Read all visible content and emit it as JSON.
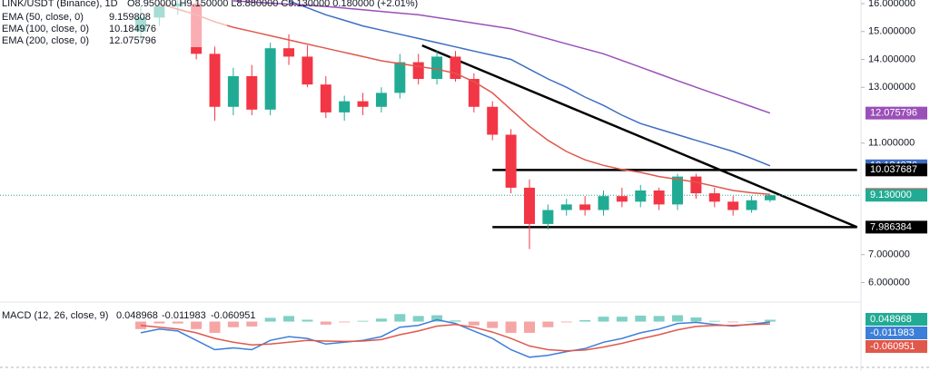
{
  "chart_data": {
    "type": "candlestick",
    "title": "LINK/USDT (Binance), 1D",
    "header_ohlc": "O8.950000 H9.150000 L8.880000 C9.130000 0.180000 (+2.01%)",
    "up_color": "#22ab94",
    "down_color": "#f23645",
    "open": [
      15.0,
      15.5,
      15.9,
      16.0,
      14.2,
      12.3,
      13.4,
      12.2,
      14.4,
      14.1,
      13.1,
      12.1,
      12.5,
      12.3,
      12.8,
      13.9,
      13.3,
      14.1,
      13.3,
      12.3,
      11.3,
      9.4,
      8.1,
      8.6,
      8.8,
      8.6,
      9.1,
      8.9,
      9.3,
      8.8,
      9.8,
      9.2,
      8.9,
      8.6,
      8.95
    ],
    "high": [
      15.9,
      16.1,
      16.3,
      16.2,
      14.5,
      13.7,
      13.8,
      14.6,
      14.9,
      14.5,
      13.4,
      12.7,
      12.8,
      13.0,
      14.2,
      14.2,
      14.3,
      14.3,
      13.5,
      12.5,
      11.5,
      9.7,
      8.8,
      9.0,
      9.1,
      9.3,
      9.4,
      9.5,
      9.4,
      9.9,
      9.9,
      9.4,
      9.1,
      9.1,
      9.15
    ],
    "low": [
      14.6,
      15.2,
      15.6,
      14.0,
      11.8,
      12.0,
      12.0,
      12.0,
      13.8,
      13.0,
      11.9,
      11.8,
      12.0,
      12.1,
      12.6,
      13.1,
      13.1,
      13.2,
      12.1,
      11.1,
      9.2,
      7.2,
      7.9,
      8.4,
      8.4,
      8.4,
      8.7,
      8.7,
      8.6,
      8.6,
      9.0,
      8.7,
      8.4,
      8.5,
      8.88
    ],
    "close": [
      15.5,
      15.9,
      16.0,
      14.2,
      12.3,
      13.4,
      12.2,
      14.4,
      14.1,
      13.1,
      12.1,
      12.5,
      12.3,
      12.8,
      13.9,
      13.3,
      14.1,
      13.3,
      12.3,
      11.3,
      9.4,
      8.1,
      8.6,
      8.8,
      8.6,
      9.1,
      8.9,
      9.3,
      8.8,
      9.8,
      9.2,
      8.9,
      8.6,
      8.95,
      9.13
    ],
    "last_price_label": "9.130000",
    "series": [
      {
        "name": "EMA (50, close, 0)",
        "color": "#e0584c",
        "values": [
          null,
          16.0,
          15.8,
          15.6,
          15.35,
          15.15,
          15.0,
          14.85,
          14.7,
          14.55,
          14.4,
          14.25,
          14.1,
          13.95,
          13.85,
          13.75,
          13.65,
          13.5,
          13.2,
          12.8,
          12.2,
          11.6,
          11.1,
          10.7,
          10.4,
          10.2,
          10.05,
          9.95,
          9.8,
          9.7,
          9.6,
          9.45,
          9.3,
          9.22,
          9.159808
        ]
      },
      {
        "name": "EMA (100, close, 0)",
        "color": "#3d6dc4",
        "values": [
          null,
          null,
          null,
          null,
          null,
          null,
          null,
          null,
          16.1,
          15.85,
          15.6,
          15.4,
          15.2,
          15.05,
          14.9,
          14.75,
          14.6,
          14.45,
          14.3,
          14.15,
          14.0,
          13.65,
          13.3,
          13.0,
          12.65,
          12.35,
          12.0,
          11.7,
          11.5,
          11.3,
          11.1,
          10.9,
          10.7,
          10.45,
          10.184976
        ]
      },
      {
        "name": "EMA (200, close, 0)",
        "color": "#9b4fb8",
        "values": [
          null,
          null,
          null,
          null,
          null,
          16.1,
          16.06,
          16.02,
          15.98,
          15.94,
          15.9,
          15.84,
          15.78,
          15.72,
          15.66,
          15.6,
          15.5,
          15.4,
          15.3,
          15.2,
          15.1,
          14.92,
          14.74,
          14.56,
          14.38,
          14.2,
          13.96,
          13.72,
          13.48,
          13.24,
          13.0,
          12.77,
          12.54,
          12.31,
          12.075796
        ]
      }
    ],
    "levels": [
      {
        "value": 10.037687,
        "x": [
          19.0,
          38.7
        ]
      },
      {
        "value": 7.986384,
        "x": [
          19.0,
          38.7
        ]
      }
    ],
    "trendline": {
      "x": [
        15.2,
        38.7
      ],
      "values": [
        14.5,
        7.986384
      ]
    },
    "ylim": [
      5.7,
      16.13
    ],
    "yticks": [
      {
        "value": 16,
        "label": "16.000000"
      },
      {
        "value": 15,
        "label": "15.000000"
      },
      {
        "value": 14,
        "label": "14.000000"
      },
      {
        "value": 13,
        "label": "13.000000"
      },
      {
        "value": 11,
        "label": "11.000000"
      },
      {
        "value": 7,
        "label": "7.000000"
      },
      {
        "value": 6,
        "label": "6.000000"
      }
    ],
    "macd": {
      "name": "MACD (12, 26, close, 9)",
      "ylim": [
        -1.1,
        0.4
      ],
      "histogram": {
        "color_up": "#7fd1c4",
        "color_down": "#f5a5a5",
        "values": [
          -0.2,
          -0.05,
          -0.05,
          -0.2,
          -0.3,
          -0.15,
          -0.13,
          0.1,
          0.15,
          0.05,
          -0.08,
          -0.02,
          0.02,
          0.08,
          0.2,
          0.15,
          0.17,
          0.03,
          -0.1,
          -0.17,
          -0.3,
          -0.3,
          -0.15,
          -0.02,
          0.04,
          0.13,
          0.13,
          0.16,
          0.15,
          0.17,
          0.11,
          0.02,
          -0.02,
          0.01,
          0.048968
        ]
      },
      "macd_line": {
        "color": "#3d7fd8",
        "values": [
          -0.3,
          -0.2,
          -0.25,
          -0.5,
          -0.75,
          -0.7,
          -0.75,
          -0.5,
          -0.4,
          -0.45,
          -0.6,
          -0.55,
          -0.5,
          -0.4,
          -0.15,
          -0.1,
          0.05,
          -0.05,
          -0.25,
          -0.45,
          -0.75,
          -0.95,
          -0.9,
          -0.8,
          -0.72,
          -0.55,
          -0.45,
          -0.3,
          -0.2,
          -0.05,
          -0.02,
          -0.08,
          -0.12,
          -0.07,
          -0.011983
        ]
      },
      "signal_line": {
        "color": "#e0584c",
        "values": [
          -0.1,
          -0.15,
          -0.2,
          -0.3,
          -0.45,
          -0.55,
          -0.62,
          -0.6,
          -0.55,
          -0.5,
          -0.52,
          -0.53,
          -0.52,
          -0.48,
          -0.35,
          -0.25,
          -0.12,
          -0.08,
          -0.15,
          -0.28,
          -0.45,
          -0.65,
          -0.75,
          -0.78,
          -0.76,
          -0.68,
          -0.58,
          -0.46,
          -0.35,
          -0.22,
          -0.13,
          -0.1,
          -0.1,
          -0.08,
          -0.060951
        ]
      }
    }
  }
}
